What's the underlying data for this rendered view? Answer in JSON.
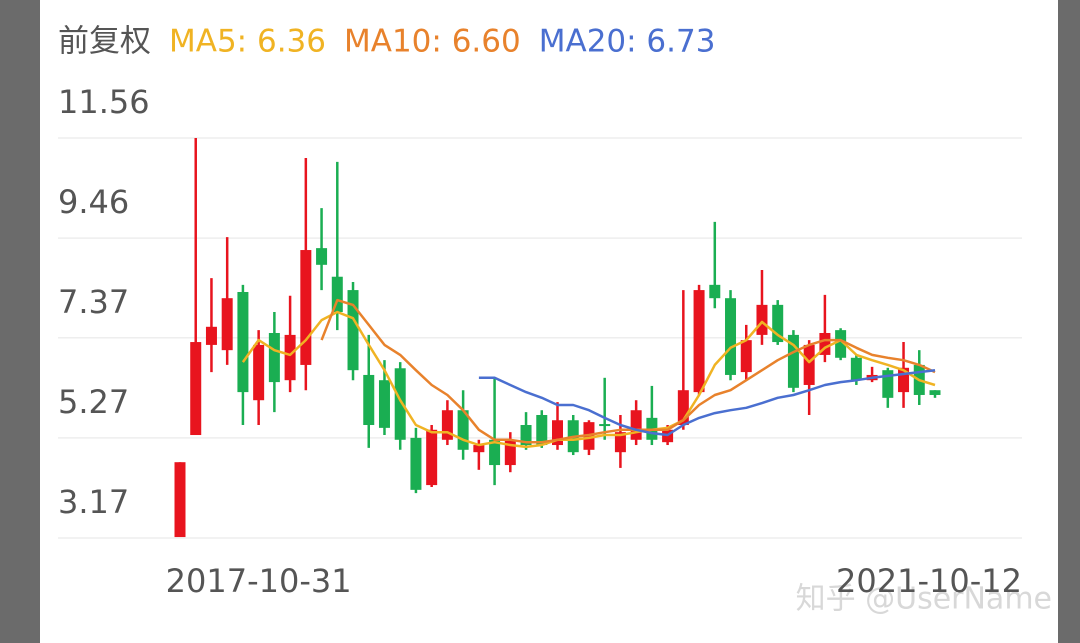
{
  "chart_data": {
    "type": "candlestick",
    "subtitle": "前复权",
    "watermark": "知乎 @UserName",
    "categories": [
      null,
      null,
      null,
      null,
      null,
      "2017-10-31",
      null,
      null,
      null,
      null,
      null,
      null,
      null,
      null,
      null,
      null,
      null,
      null,
      null,
      null,
      null,
      null,
      null,
      null,
      null,
      null,
      null,
      null,
      null,
      null,
      null,
      null,
      null,
      null,
      null,
      null,
      null,
      null,
      null,
      null,
      null,
      null,
      null,
      null,
      null,
      null,
      null,
      null,
      "2021-10-12"
    ],
    "open": [
      3.19,
      5.33,
      7.22,
      7.11,
      8.33,
      6.06,
      7.47,
      6.48,
      6.8,
      9.25,
      8.65,
      8.37,
      6.59,
      6.48,
      6.73,
      5.27,
      4.28,
      5.23,
      5.85,
      4.97,
      5.23,
      4.7,
      5.54,
      5.75,
      5.12,
      5.64,
      5.02,
      5.56,
      4.97,
      5.23,
      5.69,
      5.18,
      5.54,
      6.23,
      8.48,
      8.2,
      6.65,
      7.43,
      8.06,
      7.43,
      6.38,
      7.01,
      7.53,
      6.95,
      6.48,
      6.69,
      6.23,
      6.8,
      6.27
    ],
    "high": [
      4.76,
      11.56,
      8.62,
      9.48,
      8.48,
      7.53,
      7.91,
      8.25,
      11.14,
      10.09,
      11.06,
      8.54,
      7.43,
      6.9,
      6.86,
      5.48,
      5.54,
      6.06,
      6.27,
      5.23,
      6.53,
      5.39,
      5.81,
      5.85,
      6.02,
      5.75,
      5.64,
      6.53,
      5.75,
      6.06,
      6.36,
      5.54,
      8.37,
      8.48,
      9.8,
      8.37,
      7.64,
      8.79,
      8.16,
      7.53,
      7.32,
      8.27,
      7.57,
      7.01,
      6.76,
      6.74,
      7.28,
      7.11,
      6.27
    ],
    "low": [
      3.19,
      5.33,
      6.65,
      6.8,
      5.54,
      5.54,
      5.81,
      6.23,
      6.27,
      8.37,
      7.53,
      6.48,
      5.06,
      5.33,
      5.02,
      4.11,
      4.24,
      5.12,
      4.81,
      4.6,
      4.28,
      4.55,
      5.02,
      5.06,
      5.02,
      4.91,
      4.91,
      5.23,
      4.64,
      5.12,
      5.12,
      5.12,
      5.44,
      6.17,
      7.99,
      6.48,
      6.48,
      7.22,
      7.22,
      6.23,
      5.75,
      6.86,
      6.9,
      6.38,
      6.44,
      5.9,
      5.9,
      5.96,
      6.11
    ],
    "close": [
      4.76,
      7.28,
      7.6,
      8.2,
      6.23,
      7.22,
      6.44,
      7.43,
      9.21,
      8.9,
      7.91,
      6.69,
      5.54,
      5.48,
      5.23,
      4.18,
      5.44,
      5.85,
      5.02,
      5.12,
      4.7,
      5.23,
      5.12,
      5.12,
      5.64,
      4.97,
      5.6,
      5.52,
      5.39,
      5.85,
      5.23,
      5.44,
      6.27,
      8.37,
      8.2,
      6.59,
      7.32,
      8.06,
      7.28,
      6.32,
      7.22,
      7.47,
      6.95,
      6.48,
      6.59,
      6.11,
      6.74,
      6.17,
      6.17
    ],
    "up_color": "#e8141e",
    "down_color": "#1aae52",
    "series": [
      {
        "name": "MA5: 6.36",
        "color": "#f0b323",
        "values": [
          null,
          null,
          null,
          null,
          6.86,
          7.32,
          7.11,
          7.01,
          7.32,
          7.74,
          7.91,
          7.78,
          7.22,
          6.69,
          6.06,
          5.54,
          5.39,
          5.39,
          5.23,
          5.12,
          5.18,
          5.12,
          5.08,
          5.12,
          5.23,
          5.23,
          5.27,
          5.33,
          5.33,
          5.39,
          5.44,
          5.48,
          5.64,
          6.17,
          6.8,
          7.16,
          7.32,
          7.7,
          7.43,
          7.22,
          6.86,
          7.16,
          7.32,
          7.01,
          6.9,
          6.8,
          6.69,
          6.48,
          6.38
        ]
      },
      {
        "name": "MA10: 6.60",
        "color": "#e8822c",
        "values": [
          null,
          null,
          null,
          null,
          null,
          null,
          null,
          null,
          null,
          7.32,
          8.16,
          8.06,
          7.64,
          7.22,
          7.01,
          6.69,
          6.38,
          6.17,
          5.85,
          5.44,
          5.23,
          5.23,
          5.18,
          5.18,
          5.23,
          5.29,
          5.33,
          5.39,
          5.44,
          5.44,
          5.44,
          5.44,
          5.64,
          5.96,
          6.17,
          6.27,
          6.48,
          6.69,
          6.9,
          7.07,
          7.22,
          7.32,
          7.32,
          7.16,
          7.01,
          6.95,
          6.9,
          6.8,
          6.65
        ]
      },
      {
        "name": "MA20: 6.73",
        "color": "#4a6fd0",
        "values": [
          null,
          null,
          null,
          null,
          null,
          null,
          null,
          null,
          null,
          null,
          null,
          null,
          null,
          null,
          null,
          null,
          null,
          null,
          null,
          6.53,
          6.53,
          6.38,
          6.23,
          6.11,
          5.96,
          5.96,
          5.85,
          5.69,
          5.54,
          5.44,
          5.37,
          5.33,
          5.54,
          5.69,
          5.79,
          5.85,
          5.9,
          6.0,
          6.11,
          6.17,
          6.27,
          6.38,
          6.44,
          6.48,
          6.53,
          6.57,
          6.61,
          6.65,
          6.69
        ]
      }
    ],
    "ylim": [
      3.17,
      11.56
    ],
    "yticks": [
      {
        "value": 3.17,
        "label": "3.17"
      },
      {
        "value": 5.27,
        "label": "5.27"
      },
      {
        "value": 7.37,
        "label": "7.37"
      },
      {
        "value": 9.46,
        "label": "9.46"
      },
      {
        "value": 11.56,
        "label": "11.56"
      }
    ],
    "grid": true
  }
}
